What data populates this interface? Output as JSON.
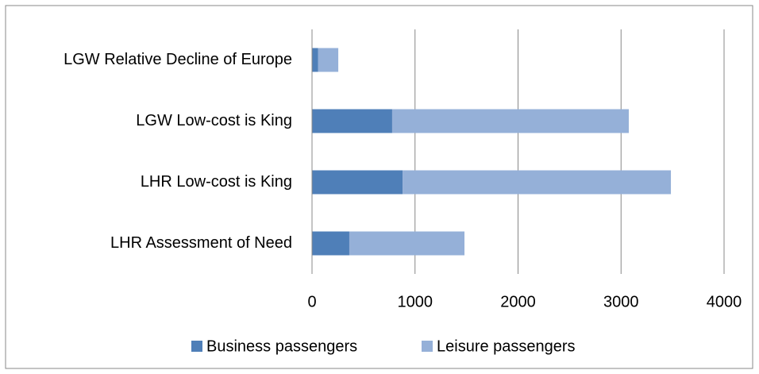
{
  "chart_data": {
    "type": "bar",
    "orientation": "horizontal",
    "stacked": true,
    "categories": [
      "LGW Relative Decline of Europe",
      "LGW Low-cost is King",
      "LHR Low-cost is King",
      "LHR Assessment of Need"
    ],
    "series": [
      {
        "name": "Business passengers",
        "color": "#4f7fb8",
        "values": [
          60,
          778,
          879,
          362
        ]
      },
      {
        "name": "Leisure passengers",
        "color": "#95b0d8",
        "values": [
          195,
          2297,
          2605,
          1118
        ]
      }
    ],
    "xlim": [
      0,
      4000
    ],
    "xticks": [
      0,
      1000,
      2000,
      3000,
      4000
    ],
    "grid": true,
    "legend": "bottom"
  }
}
